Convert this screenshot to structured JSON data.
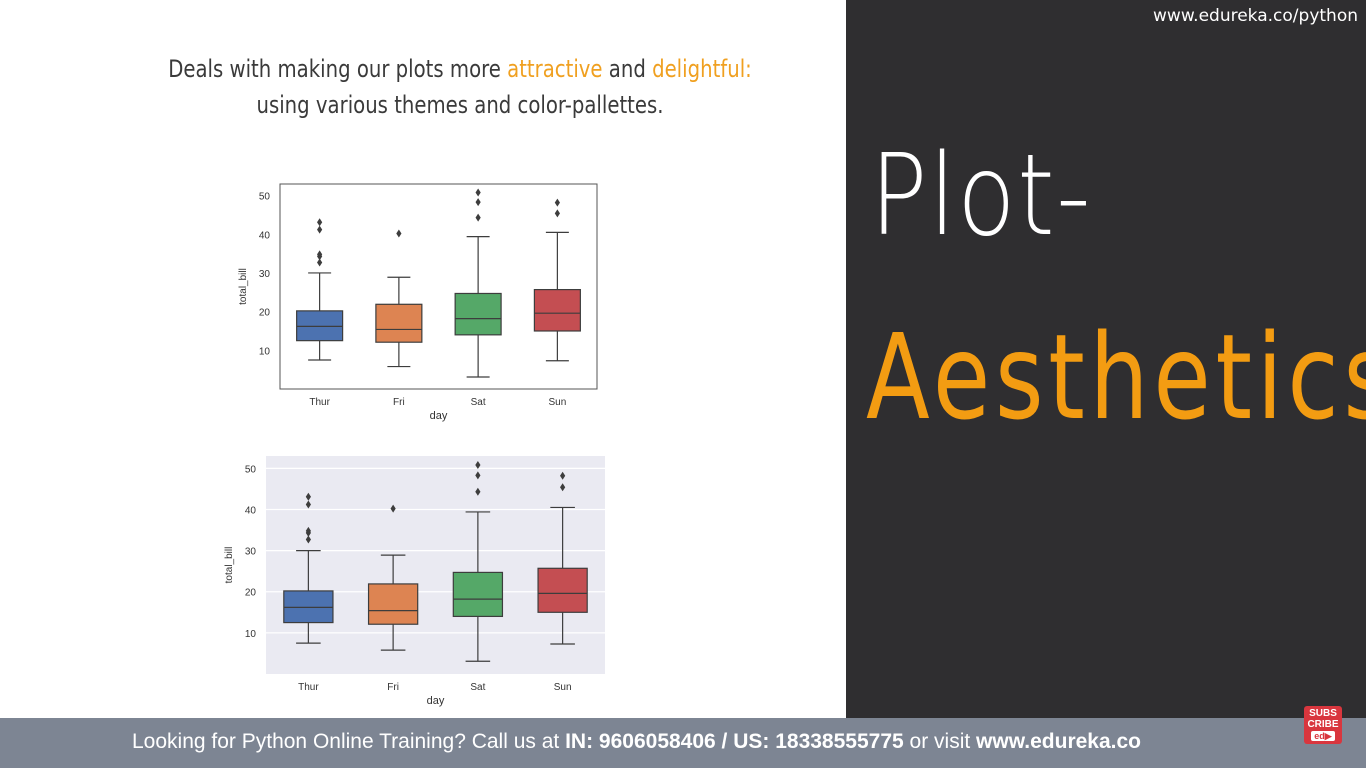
{
  "header": {
    "url": "www.edureka.co/python",
    "line1_prefix": "Deals with making our plots more ",
    "line1_word1": "attractive",
    "line1_mid": " and ",
    "line1_word2": "delightful:",
    "line2": "using various themes and color-pallettes."
  },
  "title": {
    "line1": "Plot-",
    "line2": "Aesthetics"
  },
  "footer": {
    "text1": "Looking for Python Online Training? Call us at ",
    "bold1": "IN: 9606058406 / US: 18338555775",
    "text2": " or visit ",
    "bold2": "www.edureka.co"
  },
  "subscribe": {
    "label1": "SUBS",
    "label2": "CRIBE",
    "label3": "ed▶"
  },
  "colors": {
    "accent": "#f39c12",
    "dark_panel": "#2f2e30",
    "box_thur": "#4c72b0",
    "box_fri": "#dd8452",
    "box_sat": "#55a868",
    "box_sun": "#c44e52"
  },
  "chart_data": [
    {
      "type": "box",
      "style": "white",
      "xlabel": "day",
      "ylabel": "total_bill",
      "categories": [
        "Thur",
        "Fri",
        "Sat",
        "Sun"
      ],
      "yticks": [
        10,
        20,
        30,
        40,
        50
      ],
      "ylim": [
        0,
        53
      ],
      "grid": false,
      "boxes": [
        {
          "min": 7.5,
          "q1": 12.5,
          "median": 16.2,
          "q3": 20.2,
          "max": 30,
          "outliers": [
            32.7,
            34.3,
            34.8,
            41.2,
            43.1
          ]
        },
        {
          "min": 5.8,
          "q1": 12.1,
          "median": 15.4,
          "q3": 21.9,
          "max": 28.9,
          "outliers": [
            40.2
          ]
        },
        {
          "min": 3.1,
          "q1": 14.0,
          "median": 18.2,
          "q3": 24.7,
          "max": 39.4,
          "outliers": [
            44.3,
            48.3,
            50.8
          ]
        },
        {
          "min": 7.3,
          "q1": 15.0,
          "median": 19.6,
          "q3": 25.7,
          "max": 40.5,
          "outliers": [
            45.4,
            48.2
          ]
        }
      ]
    },
    {
      "type": "box",
      "style": "darkgrid",
      "xlabel": "day",
      "ylabel": "total_bill",
      "categories": [
        "Thur",
        "Fri",
        "Sat",
        "Sun"
      ],
      "yticks": [
        10,
        20,
        30,
        40,
        50
      ],
      "ylim": [
        0,
        53
      ],
      "grid": true,
      "boxes": [
        {
          "min": 7.5,
          "q1": 12.5,
          "median": 16.2,
          "q3": 20.2,
          "max": 30,
          "outliers": [
            32.7,
            34.3,
            34.8,
            41.2,
            43.1
          ]
        },
        {
          "min": 5.8,
          "q1": 12.1,
          "median": 15.4,
          "q3": 21.9,
          "max": 28.9,
          "outliers": [
            40.2
          ]
        },
        {
          "min": 3.1,
          "q1": 14.0,
          "median": 18.2,
          "q3": 24.7,
          "max": 39.4,
          "outliers": [
            44.3,
            48.3,
            50.8
          ]
        },
        {
          "min": 7.3,
          "q1": 15.0,
          "median": 19.6,
          "q3": 25.7,
          "max": 40.5,
          "outliers": [
            45.4,
            48.2
          ]
        }
      ]
    }
  ]
}
